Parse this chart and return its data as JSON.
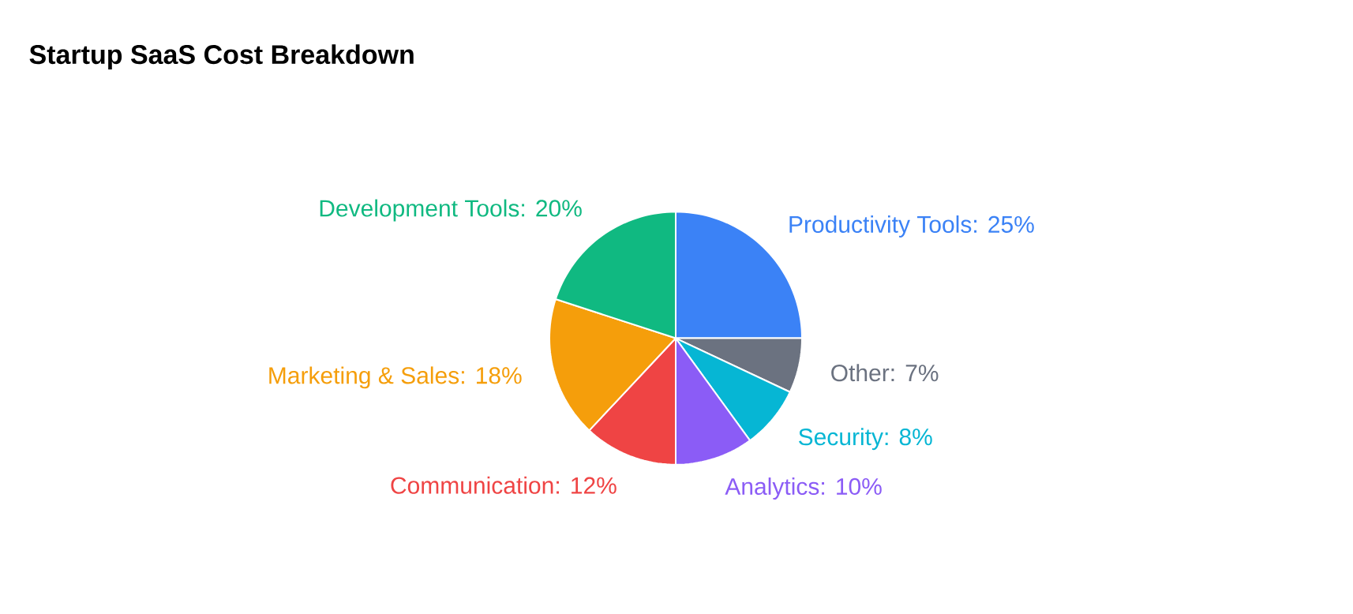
{
  "chart_data": {
    "type": "pie",
    "title": "Startup SaaS Cost Breakdown",
    "categories": [
      "Productivity Tools",
      "Other",
      "Security",
      "Analytics",
      "Communication",
      "Marketing & Sales",
      "Development Tools"
    ],
    "values": [
      25,
      7,
      8,
      10,
      12,
      18,
      20
    ],
    "colors": [
      "#3b82f6",
      "#6b7280",
      "#06b6d4",
      "#8b5cf6",
      "#ef4444",
      "#f59e0b",
      "#10b981"
    ],
    "value_labels": [
      ": 25%",
      ": 7%",
      ": 8%",
      ": 10%",
      ": 12%",
      ": 18%",
      ": 20%"
    ]
  }
}
